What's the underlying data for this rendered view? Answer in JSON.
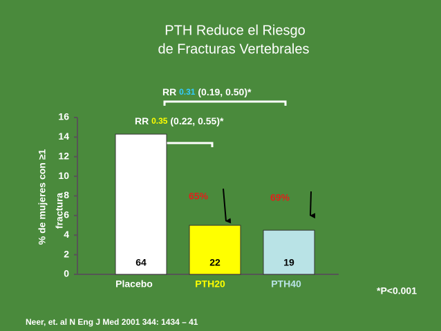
{
  "chart_data": {
    "type": "bar",
    "title": [
      "PTH Reduce el Riesgo",
      "de Fracturas Vertebrales"
    ],
    "y_label": [
      "% de mujeres con ≥1",
      "fractura"
    ],
    "categories": [
      "Placebo",
      "PTH20",
      "PTH40"
    ],
    "category_colors": [
      "#ffffff",
      "#ffff00",
      "#b9e3e6"
    ],
    "values": [
      14.3,
      5.0,
      4.5
    ],
    "colors": [
      "#ffffff",
      "#ffff00",
      "#b9e3e6"
    ],
    "counts": [
      64,
      22,
      19
    ],
    "ylim": [
      0,
      16
    ],
    "yticks": [
      0,
      2,
      4,
      6,
      8,
      10,
      12,
      14,
      16
    ],
    "comparisons": [
      {
        "prefix": "RR",
        "estimate": "0.31",
        "ci": "(0.19, 0.50)*"
      },
      {
        "prefix": "RR",
        "estimate": "0.35",
        "ci": "(0.22, 0.55)*"
      }
    ],
    "reductions": [
      "65%",
      "69%"
    ],
    "footnote": "*P<0.001",
    "source": "Neer, et. al N Eng J Med 2001 344: 1434 – 41"
  }
}
